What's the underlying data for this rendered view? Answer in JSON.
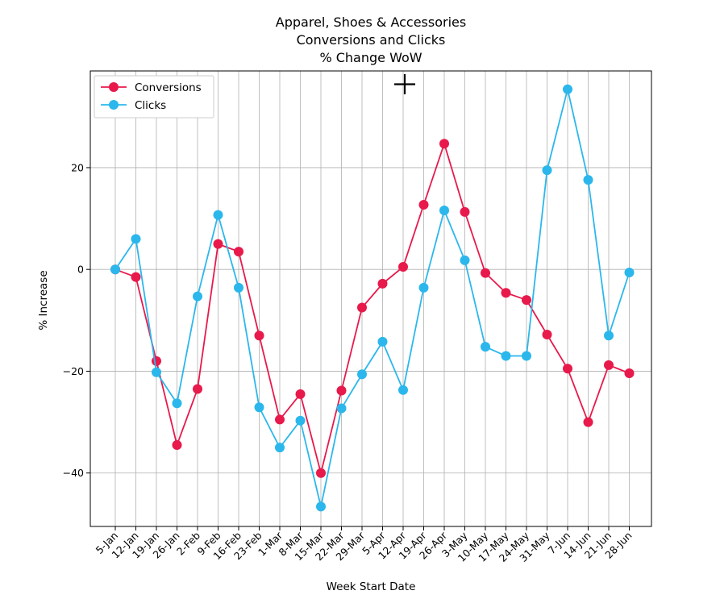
{
  "chart_data": {
    "type": "line",
    "title_lines": [
      "Apparel, Shoes & Accessories",
      "Conversions and Clicks",
      "% Change WoW"
    ],
    "xlabel": "Week Start Date",
    "ylabel": "% Increase",
    "categories": [
      "5-Jan",
      "12-Jan",
      "19-Jan",
      "26-Jan",
      "2-Feb",
      "9-Feb",
      "16-Feb",
      "23-Feb",
      "1-Mar",
      "8-Mar",
      "15-Mar",
      "22-Mar",
      "29-Mar",
      "5-Apr",
      "12-Apr",
      "19-Apr",
      "26-Apr",
      "3-May",
      "10-May",
      "17-May",
      "24-May",
      "31-May",
      "7-Jun",
      "14-Jun",
      "21-Jun",
      "28-Jun"
    ],
    "ylim": [
      -50.5,
      39
    ],
    "yticks": [
      20,
      0,
      -20,
      -40
    ],
    "ytick_labels": [
      "20",
      "0",
      "−20",
      "−40"
    ],
    "grid": true,
    "legend_position": "top-left",
    "series": [
      {
        "name": "Conversions",
        "color": "#e8194b",
        "values": [
          0,
          -1.5,
          -18,
          -34.5,
          -23.5,
          5,
          3.5,
          -13,
          -29.5,
          -24.5,
          -40,
          -23.8,
          -7.5,
          -2.8,
          0.5,
          12.7,
          24.7,
          11.3,
          -0.7,
          -4.6,
          -6,
          -12.8,
          -19.5,
          -30,
          -18.8,
          -20.4
        ]
      },
      {
        "name": "Clicks",
        "color": "#2bb7ec",
        "values": [
          0,
          6,
          -20.2,
          -26.3,
          -5.3,
          10.7,
          -3.6,
          -27.1,
          -35,
          -29.7,
          -46.6,
          -27.3,
          -20.6,
          -14.2,
          -23.7,
          -3.6,
          11.6,
          1.8,
          -15.2,
          -17,
          -17,
          19.5,
          35.4,
          17.6,
          -13,
          -0.6
        ]
      }
    ]
  }
}
